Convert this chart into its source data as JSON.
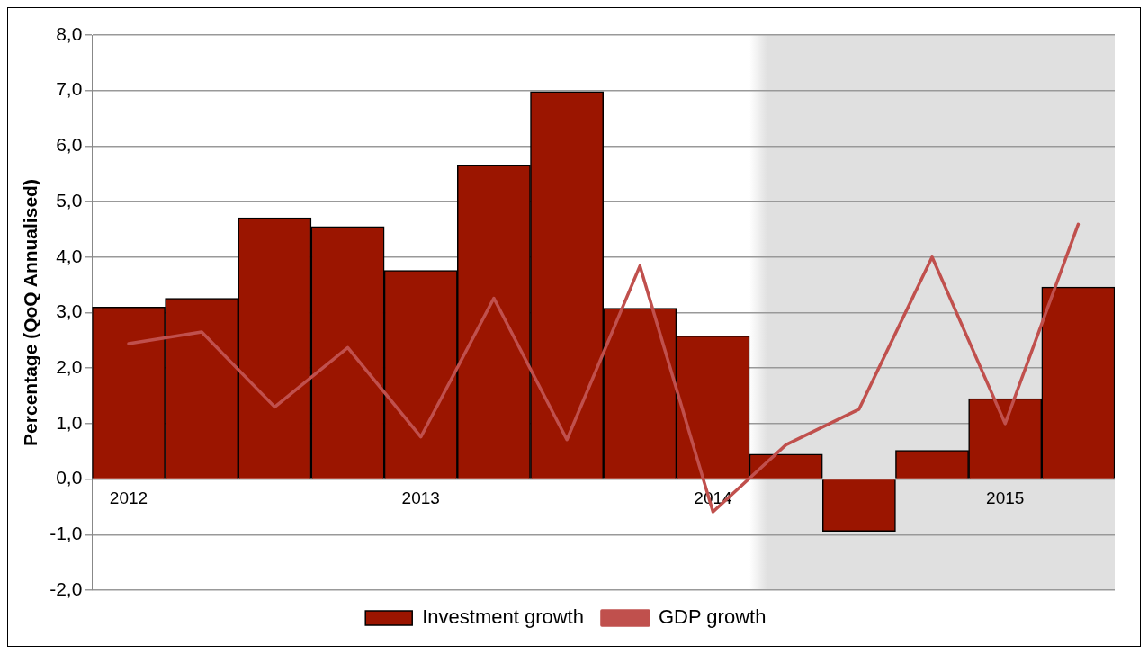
{
  "chart_data": {
    "type": "bar",
    "ylabel": "Percentage (QoQ Annualised)",
    "categories": [
      "2012",
      null,
      null,
      null,
      "2013",
      null,
      null,
      null,
      "2014",
      null,
      null,
      null,
      "2015",
      null
    ],
    "series": [
      {
        "name": "Investment growth",
        "color": "#9b1500",
        "values": [
          3.1,
          3.26,
          4.71,
          4.55,
          3.76,
          5.66,
          6.98,
          3.08,
          2.58,
          0.45,
          -0.94,
          0.52,
          1.45,
          3.46
        ]
      },
      {
        "name": "GDP growth",
        "type": "line",
        "color": "#c0504d",
        "values": [
          2.44,
          2.65,
          1.3,
          2.37,
          0.76,
          3.26,
          0.71,
          3.84,
          -0.59,
          0.62,
          1.26,
          4.0,
          1.0,
          4.59
        ]
      }
    ],
    "ylim": [
      -2,
      8
    ],
    "yticks": [
      {
        "value": -2,
        "label": "-2,0"
      },
      {
        "value": -1,
        "label": "-1,0"
      },
      {
        "value": 0,
        "label": "0,0"
      },
      {
        "value": 1,
        "label": "1,0"
      },
      {
        "value": 2,
        "label": "2,0"
      },
      {
        "value": 3,
        "label": "3,0"
      },
      {
        "value": 4,
        "label": "4,0"
      },
      {
        "value": 5,
        "label": "5,0"
      },
      {
        "value": 6,
        "label": "6,0"
      },
      {
        "value": 7,
        "label": "7,0"
      },
      {
        "value": 8,
        "label": "8,0"
      }
    ],
    "grid": "y",
    "legend": "bottom",
    "marker": "none",
    "line_style": "solid"
  }
}
